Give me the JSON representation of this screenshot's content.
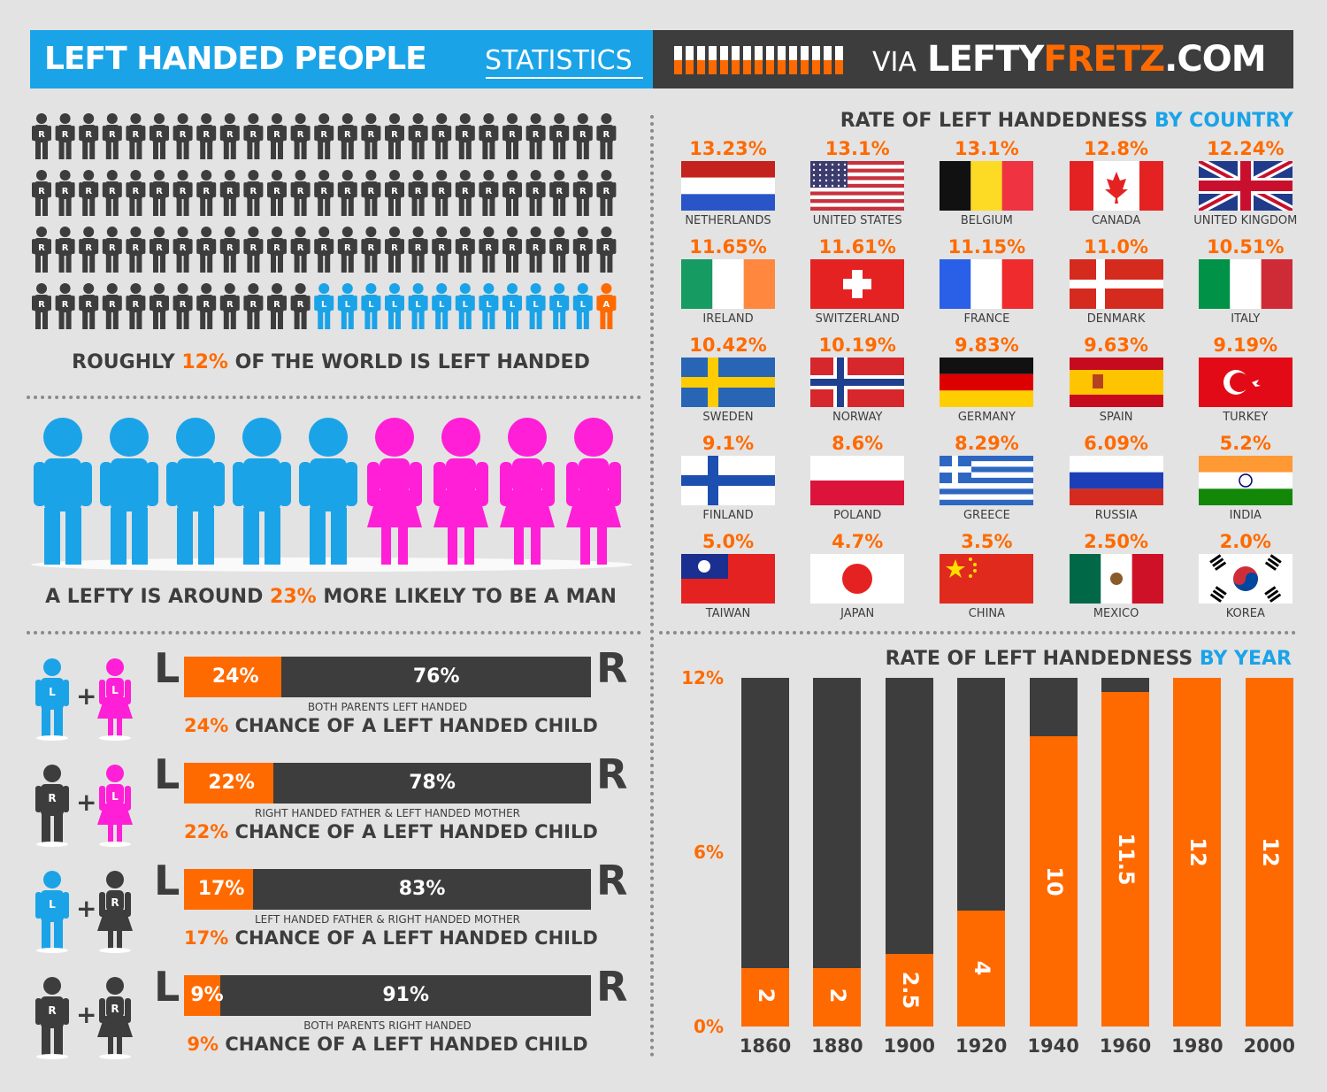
{
  "header": {
    "title": "LEFT HANDED PEOPLE",
    "subtitle": "STATISTICS",
    "via": "VIA",
    "brand_part1": "LEFTY",
    "brand_part2": "FRETZ",
    "brand_part3": ".COM",
    "stripe_fills": [
      0.5,
      0.5,
      0.5,
      0.5,
      0.5,
      0.5,
      0.5,
      0.5,
      0.5,
      0.5,
      0.5,
      0.5,
      0.5,
      0.5,
      0.5
    ],
    "colors": {
      "blue": "#1ba3e8",
      "dark": "#3d3d3d",
      "orange": "#ff6a00",
      "pink": "#ff1fd6"
    }
  },
  "population": {
    "right_label": "R",
    "left_label": "L",
    "ambi_label": "A",
    "total": 100,
    "right_count": 87,
    "left_count": 12,
    "ambi_count": 1,
    "caption_pre": "ROUGHLY",
    "caption_pct": "12%",
    "caption_post": "OF THE WORLD IS LEFT HANDED"
  },
  "gender": {
    "men_count": 5,
    "women_count": 4,
    "caption_pre": "A LEFTY IS AROUND",
    "caption_pct": "23%",
    "caption_post": "MORE LIKELY TO BE A MAN"
  },
  "country": {
    "title_pre": "RATE OF LEFT HANDEDNESS",
    "title_post": "BY COUNTRY",
    "items": [
      {
        "pct": "13.23%",
        "name": "NETHERLANDS",
        "flag": "nl"
      },
      {
        "pct": "13.1%",
        "name": "UNITED STATES",
        "flag": "us"
      },
      {
        "pct": "13.1%",
        "name": "BELGIUM",
        "flag": "be"
      },
      {
        "pct": "12.8%",
        "name": "CANADA",
        "flag": "ca"
      },
      {
        "pct": "12.24%",
        "name": "UNITED KINGDOM",
        "flag": "uk"
      },
      {
        "pct": "11.65%",
        "name": "IRELAND",
        "flag": "ie"
      },
      {
        "pct": "11.61%",
        "name": "SWITZERLAND",
        "flag": "ch"
      },
      {
        "pct": "11.15%",
        "name": "FRANCE",
        "flag": "fr"
      },
      {
        "pct": "11.0%",
        "name": "DENMARK",
        "flag": "dk"
      },
      {
        "pct": "10.51%",
        "name": "ITALY",
        "flag": "it"
      },
      {
        "pct": "10.42%",
        "name": "SWEDEN",
        "flag": "se"
      },
      {
        "pct": "10.19%",
        "name": "NORWAY",
        "flag": "no"
      },
      {
        "pct": "9.83%",
        "name": "GERMANY",
        "flag": "de"
      },
      {
        "pct": "9.63%",
        "name": "SPAIN",
        "flag": "es"
      },
      {
        "pct": "9.19%",
        "name": "TURKEY",
        "flag": "tr"
      },
      {
        "pct": "9.1%",
        "name": "FINLAND",
        "flag": "fi"
      },
      {
        "pct": "8.6%",
        "name": "POLAND",
        "flag": "pl"
      },
      {
        "pct": "8.29%",
        "name": "GREECE",
        "flag": "gr"
      },
      {
        "pct": "6.09%",
        "name": "RUSSIA",
        "flag": "ru"
      },
      {
        "pct": "5.2%",
        "name": "INDIA",
        "flag": "in"
      },
      {
        "pct": "5.0%",
        "name": "TAIWAN",
        "flag": "tw"
      },
      {
        "pct": "4.7%",
        "name": "JAPAN",
        "flag": "jp"
      },
      {
        "pct": "3.5%",
        "name": "CHINA",
        "flag": "cn"
      },
      {
        "pct": "2.50%",
        "name": "MEXICO",
        "flag": "mx"
      },
      {
        "pct": "2.0%",
        "name": "KOREA",
        "flag": "kr"
      }
    ]
  },
  "parents": {
    "left_letter": "L",
    "right_letter": "R",
    "rows": [
      {
        "father": "L",
        "mother": "L",
        "left_pct": "24%",
        "right_pct": "76%",
        "left_value": 24,
        "desc": "BOTH PARENTS LEFT HANDED",
        "chance_pct": "24%",
        "chance_text": "CHANCE OF A LEFT HANDED CHILD"
      },
      {
        "father": "R",
        "mother": "L",
        "left_pct": "22%",
        "right_pct": "78%",
        "left_value": 22,
        "desc": "RIGHT HANDED FATHER & LEFT HANDED MOTHER",
        "chance_pct": "22%",
        "chance_text": "CHANCE OF A LEFT HANDED CHILD"
      },
      {
        "father": "L",
        "mother": "R",
        "left_pct": "17%",
        "right_pct": "83%",
        "left_value": 17,
        "desc": "LEFT HANDED FATHER & RIGHT HANDED MOTHER",
        "chance_pct": "17%",
        "chance_text": "CHANCE OF A LEFT HANDED CHILD"
      },
      {
        "father": "R",
        "mother": "R",
        "left_pct": "9%",
        "right_pct": "91%",
        "left_value": 9,
        "desc": "BOTH PARENTS RIGHT HANDED",
        "chance_pct": "9%",
        "chance_text": "CHANCE OF A LEFT HANDED CHILD"
      }
    ]
  },
  "chart_data": [
    {
      "type": "bar",
      "title": "RATE OF LEFT HANDEDNESS BY YEAR",
      "categories": [
        "1860",
        "1880",
        "1900",
        "1920",
        "1940",
        "1960",
        "1980",
        "2000"
      ],
      "values": [
        2,
        2,
        2.5,
        4,
        10,
        11.5,
        12,
        12
      ],
      "labels": [
        "2",
        "2",
        "2.5",
        "4",
        "10",
        "11.5",
        "12",
        "12"
      ],
      "ylim": [
        0,
        12
      ],
      "yticks": [
        "0%",
        "6%",
        "12%"
      ],
      "ytick_values": [
        0,
        6,
        12
      ],
      "grid": false
    },
    {
      "type": "bar",
      "title": "RATE OF LEFT HANDEDNESS BY COUNTRY",
      "categories": [
        "NETHERLANDS",
        "UNITED STATES",
        "BELGIUM",
        "CANADA",
        "UNITED KINGDOM",
        "IRELAND",
        "SWITZERLAND",
        "FRANCE",
        "DENMARK",
        "ITALY",
        "SWEDEN",
        "NORWAY",
        "GERMANY",
        "SPAIN",
        "TURKEY",
        "FINLAND",
        "POLAND",
        "GREECE",
        "RUSSIA",
        "INDIA",
        "TAIWAN",
        "JAPAN",
        "CHINA",
        "MEXICO",
        "KOREA"
      ],
      "values": [
        13.23,
        13.1,
        13.1,
        12.8,
        12.24,
        11.65,
        11.61,
        11.15,
        11.0,
        10.51,
        10.42,
        10.19,
        9.83,
        9.63,
        9.19,
        9.1,
        8.6,
        8.29,
        6.09,
        5.2,
        5.0,
        4.7,
        3.5,
        2.5,
        2.0
      ]
    }
  ]
}
